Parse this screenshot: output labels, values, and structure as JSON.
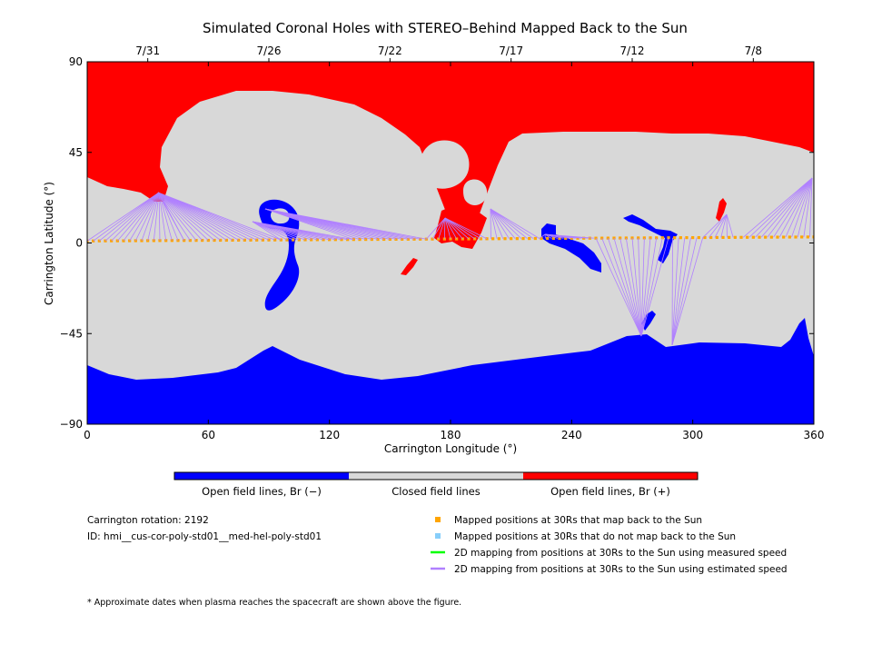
{
  "chart_data": {
    "type": "heatmap",
    "title": "Simulated Coronal Holes with STEREO–Behind Mapped Back to the Sun",
    "xlabel": "Carrington Longitude (°)",
    "ylabel": "Carrington Latitude (°)",
    "xlim": [
      0,
      360
    ],
    "ylim": [
      -90,
      90
    ],
    "x_ticks": [
      0,
      60,
      120,
      180,
      240,
      300,
      360
    ],
    "y_ticks": [
      -90,
      -45,
      0,
      45,
      90
    ],
    "top_axis": {
      "labels": [
        "7/31",
        "7/26",
        "7/22",
        "7/17",
        "7/12",
        "7/8"
      ],
      "longitudes": [
        30,
        90,
        150,
        210,
        270,
        330
      ]
    },
    "colorbar": {
      "labels": [
        "Open field lines, Br (−)",
        "Closed field lines",
        "Open field lines, Br (+)"
      ],
      "colors": [
        "#0000ff",
        "#d8d8d8",
        "#ff0000"
      ]
    },
    "footpoint_latitude_range": [
      1,
      3
    ],
    "legend": [
      {
        "label": "Mapped positions at 30Rs that map back to the Sun",
        "color": "#ffa500",
        "marker": "square"
      },
      {
        "label": "Mapped positions at 30Rs that do not map back to the Sun",
        "color": "#87cefa",
        "marker": "square"
      },
      {
        "label": "2D mapping from positions at 30Rs to the Sun using measured speed",
        "color": "#00ff00",
        "marker": "line"
      },
      {
        "label": "2D mapping from positions at 30Rs to the Sun using estimated speed",
        "color": "#b080ff",
        "marker": "line"
      }
    ],
    "info": {
      "rotation": "Carrington rotation: 2192",
      "id": "ID: hmi__cus-cor-poly-std01__med-hel-poly-std01"
    },
    "footnote": "* Approximate dates when plasma reaches the spacecraft are shown above the figure."
  }
}
